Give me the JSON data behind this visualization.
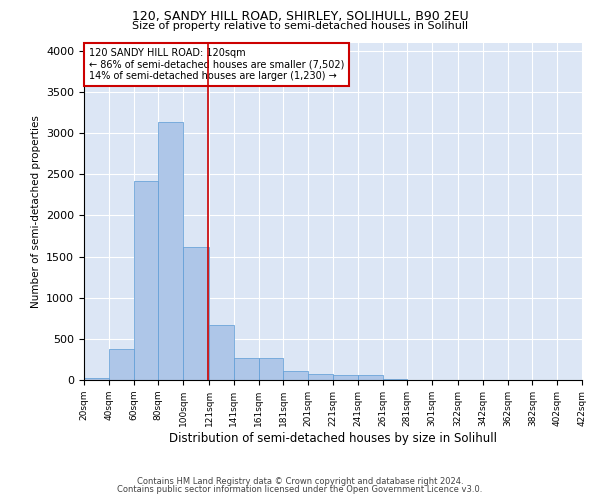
{
  "title1": "120, SANDY HILL ROAD, SHIRLEY, SOLIHULL, B90 2EU",
  "title2": "Size of property relative to semi-detached houses in Solihull",
  "xlabel": "Distribution of semi-detached houses by size in Solihull",
  "ylabel": "Number of semi-detached properties",
  "footer1": "Contains HM Land Registry data © Crown copyright and database right 2024.",
  "footer2": "Contains public sector information licensed under the Open Government Licence v3.0.",
  "annotation_line1": "120 SANDY HILL ROAD: 120sqm",
  "annotation_line2": "← 86% of semi-detached houses are smaller (7,502)",
  "annotation_line3": "14% of semi-detached houses are larger (1,230) →",
  "property_size": 120,
  "bar_color": "#aec6e8",
  "bar_edge_color": "#5b9bd5",
  "highlight_line_color": "#cc0000",
  "annotation_box_color": "#cc0000",
  "background_color": "#ffffff",
  "plot_background": "#dce6f5",
  "grid_color": "#ffffff",
  "ylim": [
    0,
    4100
  ],
  "bins": [
    20,
    40,
    60,
    80,
    100,
    121,
    141,
    161,
    181,
    201,
    221,
    241,
    261,
    281,
    301,
    322,
    342,
    362,
    382,
    402,
    422
  ],
  "bar_heights": [
    30,
    380,
    2420,
    3130,
    1620,
    670,
    270,
    270,
    110,
    70,
    60,
    55,
    10,
    5,
    3,
    2,
    1,
    1,
    0,
    0
  ],
  "yticks": [
    0,
    500,
    1000,
    1500,
    2000,
    2500,
    3000,
    3500,
    4000
  ]
}
